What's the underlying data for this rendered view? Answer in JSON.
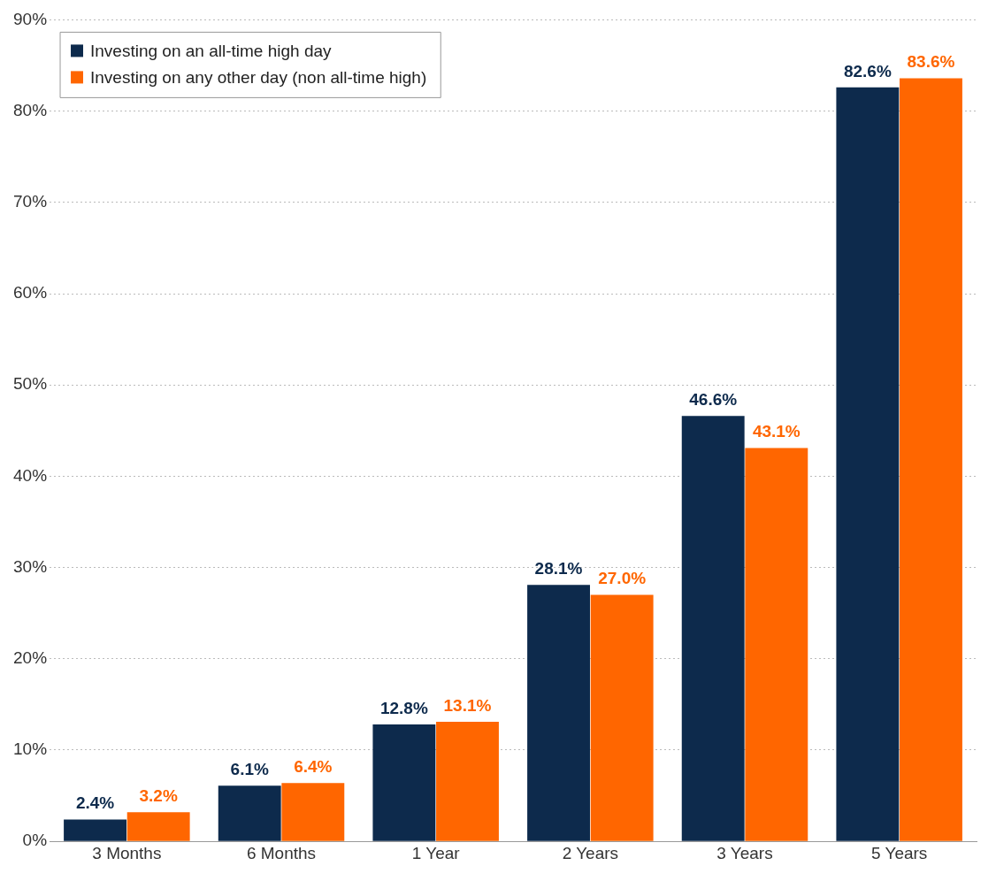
{
  "chart_data": {
    "type": "bar",
    "categories": [
      "3 Months",
      "6 Months",
      "1 Year",
      "2 Years",
      "3 Years",
      "5 Years"
    ],
    "series": [
      {
        "name": "Investing on an all-time high day",
        "color": "#0d2a4c",
        "values": [
          2.4,
          6.1,
          12.8,
          28.1,
          46.6,
          82.6
        ]
      },
      {
        "name": "Investing on any other day (non all-time high)",
        "color": "#ff6600",
        "values": [
          3.2,
          6.4,
          13.1,
          27.0,
          43.1,
          83.6
        ]
      }
    ],
    "value_labels": [
      [
        "2.4%",
        "6.1%",
        "12.8%",
        "28.1%",
        "46.6%",
        "82.6%"
      ],
      [
        "3.2%",
        "6.4%",
        "13.1%",
        "27.0%",
        "43.1%",
        "83.6%"
      ]
    ],
    "ylim": [
      0,
      90
    ],
    "yticks": [
      {
        "value": 0,
        "label": "0%"
      },
      {
        "value": 10,
        "label": "10%"
      },
      {
        "value": 20,
        "label": "20%"
      },
      {
        "value": 30,
        "label": "30%"
      },
      {
        "value": 40,
        "label": "40%"
      },
      {
        "value": 50,
        "label": "50%"
      },
      {
        "value": 60,
        "label": "60%"
      },
      {
        "value": 70,
        "label": "70%"
      },
      {
        "value": 80,
        "label": "80%"
      },
      {
        "value": 90,
        "label": "90%"
      }
    ],
    "grid": "y",
    "legend": "top left"
  }
}
